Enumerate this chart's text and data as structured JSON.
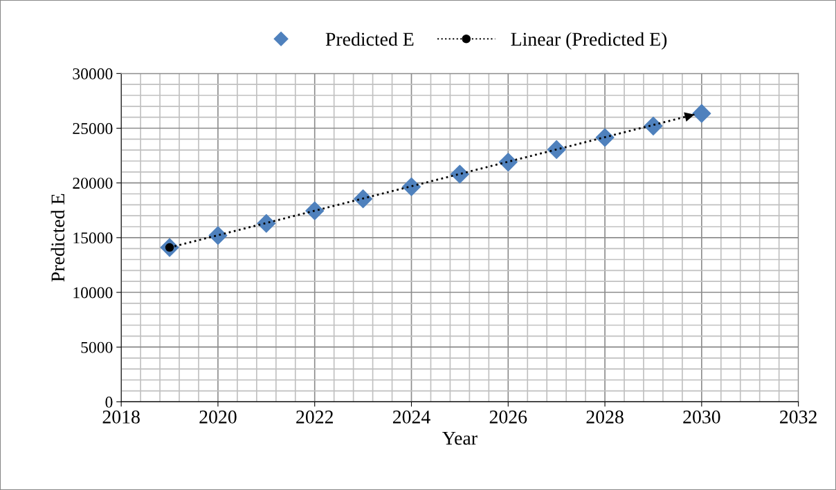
{
  "chart_data": {
    "type": "scatter",
    "xlabel": "Year",
    "ylabel": "Predicted E",
    "x": [
      2019,
      2020,
      2021,
      2022,
      2023,
      2024,
      2025,
      2026,
      2027,
      2028,
      2029,
      2030
    ],
    "series": [
      {
        "name": "Predicted E",
        "color": "#4f81bd",
        "marker": "diamond",
        "values": [
          14100,
          15200,
          16300,
          17450,
          18550,
          19650,
          20800,
          21900,
          23050,
          24150,
          25200,
          26350
        ]
      },
      {
        "name": "Linear (Predicted E)",
        "type": "line",
        "color": "#000000",
        "line_style": "dotted",
        "x": [
          2019,
          2029.85
        ],
        "values": [
          14100,
          26250
        ]
      }
    ],
    "xlim": [
      2018,
      2032
    ],
    "xticks": [
      2018,
      2020,
      2022,
      2024,
      2026,
      2028,
      2030,
      2032
    ],
    "ylim": [
      0,
      30000
    ],
    "yticks": [
      0,
      5000,
      10000,
      15000,
      20000,
      25000,
      30000
    ],
    "grid": true,
    "legend": "top"
  }
}
